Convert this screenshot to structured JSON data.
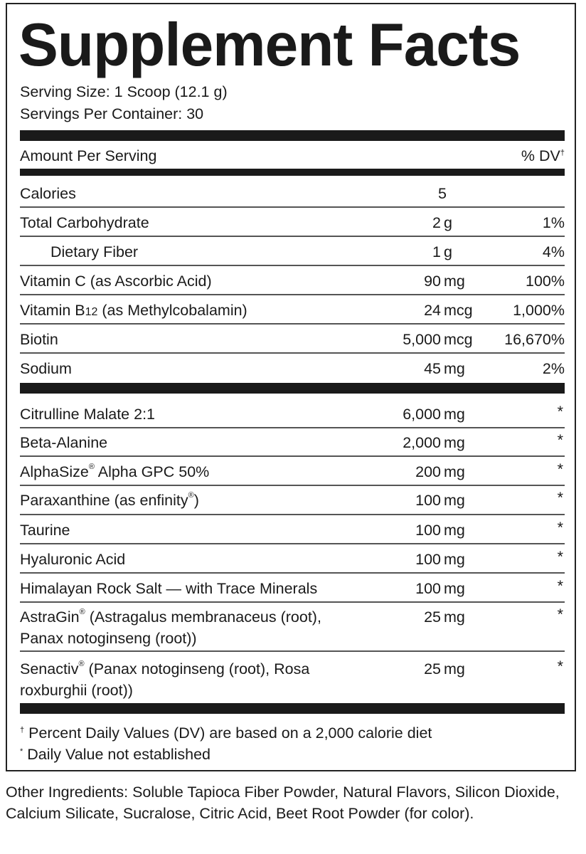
{
  "title": "Supplement Facts",
  "serving_size": "Serving Size: 1 Scoop (12.1 g)",
  "servings_per_container": "Servings Per Container: 30",
  "header": {
    "amount": "Amount Per Serving",
    "dv": "% DV",
    "dv_mark": "†"
  },
  "nutrients": [
    {
      "name": "Calories",
      "amount": "5",
      "unit": "",
      "dv": ""
    },
    {
      "name": "Total Carbohydrate",
      "amount": "2",
      "unit": "g",
      "dv": "1%"
    },
    {
      "name": "Dietary Fiber",
      "amount": "1",
      "unit": "g",
      "dv": "4%"
    },
    {
      "name": "Vitamin C (as Ascorbic Acid)",
      "amount": "90",
      "unit": "mg",
      "dv": "100%"
    },
    {
      "name": "Vitamin B12 (as Methylcobalamin)",
      "amount": "24",
      "unit": "mcg",
      "dv": "1,000%"
    },
    {
      "name": "Biotin",
      "amount": "5,000",
      "unit": "mcg",
      "dv": "16,670%"
    },
    {
      "name": "Sodium",
      "amount": "45",
      "unit": "mg",
      "dv": "2%"
    }
  ],
  "ingredients": [
    {
      "name": "Citrulline Malate 2:1",
      "amount": "6,000",
      "unit": "mg",
      "dv": "*"
    },
    {
      "name": "Beta-Alanine",
      "amount": "2,000",
      "unit": "mg",
      "dv": "*"
    },
    {
      "name": "AlphaSize",
      "reg": "®",
      "name2": " Alpha GPC 50%",
      "amount": "200",
      "unit": "mg",
      "dv": "*"
    },
    {
      "name": "Paraxanthine (as enfinity",
      "reg": "®",
      "name2": ")",
      "amount": "100",
      "unit": "mg",
      "dv": "*"
    },
    {
      "name": "Taurine",
      "amount": "100",
      "unit": "mg",
      "dv": "*"
    },
    {
      "name": "Hyaluronic Acid",
      "amount": "100",
      "unit": "mg",
      "dv": "*"
    },
    {
      "name": "Himalayan Rock Salt — with Trace Minerals",
      "amount": "100",
      "unit": "mg",
      "dv": "*"
    },
    {
      "name": "AstraGin",
      "reg": "®",
      "name2": " (Astragalus membranaceus (root),",
      "name3": "Panax notoginseng (root))",
      "amount": "25",
      "unit": "mg",
      "dv": "*"
    },
    {
      "name": "Senactiv",
      "reg": "®",
      "name2": " (Panax notoginseng (root), Rosa",
      "name3": "roxburghii (root))",
      "amount": "25",
      "unit": "mg",
      "dv": "*"
    }
  ],
  "footnotes": {
    "dv_mark": "†",
    "dv_note": " Percent Daily Values (DV) are based on a 2,000 calorie diet",
    "star_mark": "*",
    "star_note": " Daily Value not established"
  },
  "other_ingredients": "Other Ingredients: Soluble Tapioca Fiber Powder, Natural Flavors, Silicon Dioxide, Calcium Silicate, Sucralose, Citric Acid, Beet Root Powder (for color)."
}
